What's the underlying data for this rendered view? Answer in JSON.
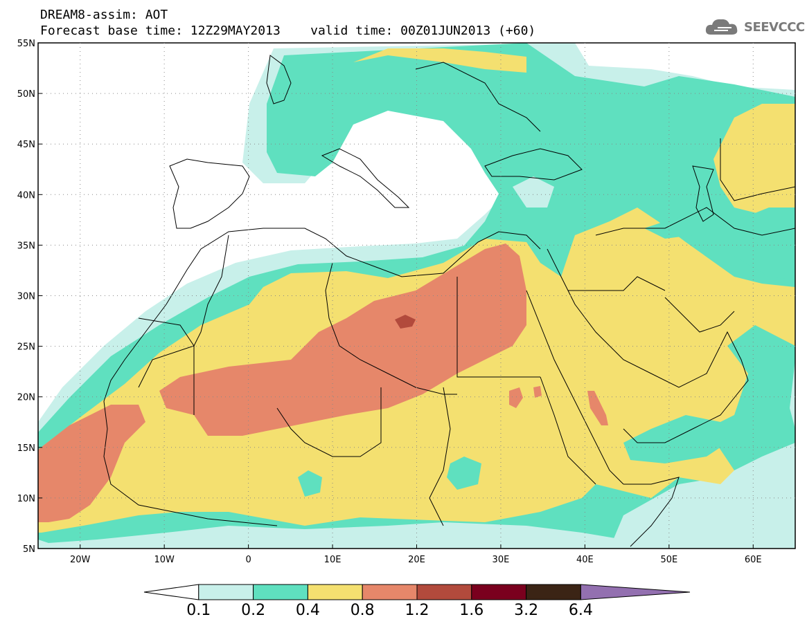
{
  "header": {
    "title_line1": "DREAM8-assim: AOT",
    "title_line2": "Forecast base time: 12Z29MAY2013    valid time: 00Z01JUN2013 (+60)",
    "logo_text": "SEEVCCC"
  },
  "map": {
    "variable": "AOT",
    "lon_range": [
      -25,
      65
    ],
    "lat_range": [
      5,
      55
    ],
    "lat_labels": [
      "55N",
      "50N",
      "45N",
      "40N",
      "35N",
      "30N",
      "25N",
      "20N",
      "15N",
      "10N",
      "5N"
    ],
    "lon_labels": [
      "20W",
      "10W",
      "0",
      "10E",
      "20E",
      "30E",
      "40E",
      "50E",
      "60E"
    ]
  },
  "colorbar": {
    "levels": [
      "0.1",
      "0.2",
      "0.4",
      "0.8",
      "1.2",
      "1.6",
      "3.2",
      "6.4"
    ],
    "colors": [
      "#ffffff",
      "#c8f0ea",
      "#5fe0bf",
      "#f4e070",
      "#e6876a",
      "#b24a3c",
      "#7a001e",
      "#3b2415",
      "#9370b0"
    ]
  }
}
